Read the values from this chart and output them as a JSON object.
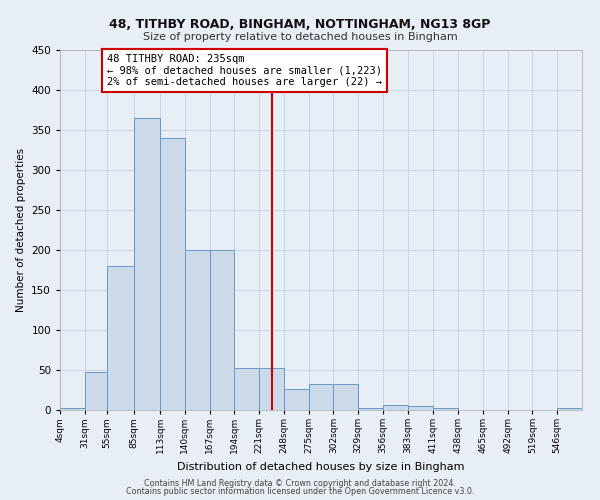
{
  "title1": "48, TITHBY ROAD, BINGHAM, NOTTINGHAM, NG13 8GP",
  "title2": "Size of property relative to detached houses in Bingham",
  "xlabel": "Distribution of detached houses by size in Bingham",
  "ylabel": "Number of detached properties",
  "bin_labels": [
    "4sqm",
    "31sqm",
    "55sqm",
    "85sqm",
    "113sqm",
    "140sqm",
    "167sqm",
    "194sqm",
    "221sqm",
    "248sqm",
    "275sqm",
    "302sqm",
    "329sqm",
    "356sqm",
    "383sqm",
    "411sqm",
    "438sqm",
    "465sqm",
    "492sqm",
    "519sqm",
    "546sqm"
  ],
  "bin_edges": [
    4,
    31,
    55,
    85,
    113,
    140,
    167,
    194,
    221,
    248,
    275,
    302,
    329,
    356,
    383,
    411,
    438,
    465,
    492,
    519,
    546
  ],
  "bar_heights": [
    2,
    48,
    180,
    365,
    340,
    200,
    200,
    53,
    53,
    26,
    32,
    32,
    3,
    6,
    5,
    2,
    0,
    0,
    0,
    0,
    2
  ],
  "bar_facecolor": "#ccd9e8",
  "bar_edgecolor": "#6699cc",
  "vline_x": 235,
  "vline_color": "#cc0000",
  "annotation_line1": "48 TITHBY ROAD: 235sqm",
  "annotation_line2": "← 98% of detached houses are smaller (1,223)",
  "annotation_line3": "2% of semi-detached houses are larger (22) →",
  "annotation_box_color": "#cc0000",
  "annotation_text_color": "#000000",
  "annotation_bg": "#ffffff",
  "ylim": [
    0,
    450
  ],
  "yticks": [
    0,
    50,
    100,
    150,
    200,
    250,
    300,
    350,
    400,
    450
  ],
  "grid_color": "#c5cfe0",
  "bg_color": "#e8eef5",
  "footer1": "Contains HM Land Registry data © Crown copyright and database right 2024.",
  "footer2": "Contains public sector information licensed under the Open Government Licence v3.0."
}
